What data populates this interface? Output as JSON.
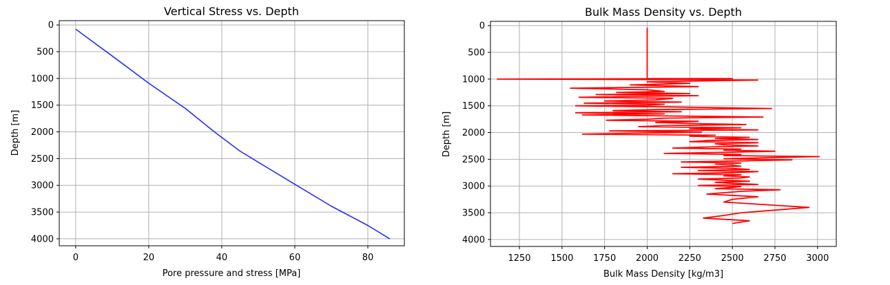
{
  "chart_data": [
    {
      "type": "line",
      "title": "Vertical Stress vs. Depth",
      "xlabel": "Pore pressure and stress [MPa]",
      "ylabel": "Depth [m]",
      "xlim": [
        -4.5,
        90
      ],
      "ylim": [
        4130,
        -80
      ],
      "y_inverted": true,
      "grid": true,
      "xticks": [
        0,
        20,
        40,
        60,
        80
      ],
      "yticks": [
        0,
        500,
        1000,
        1500,
        2000,
        2500,
        3000,
        3500,
        4000
      ],
      "color": "#2828ff",
      "series": [
        {
          "x": [
            0,
            10,
            20,
            30,
            38,
            45,
            52,
            60,
            70,
            80,
            86
          ],
          "y": [
            80,
            580,
            1090,
            1560,
            2000,
            2360,
            2650,
            2980,
            3390,
            3750,
            4000
          ]
        }
      ]
    },
    {
      "type": "line",
      "title": "Bulk Mass Density vs. Depth",
      "xlabel": "Bulk Mass Density [kg/m3]",
      "ylabel": "Depth [m]",
      "xlim": [
        1080,
        3110
      ],
      "ylim": [
        4130,
        -80
      ],
      "y_inverted": true,
      "grid": true,
      "xticks": [
        1250,
        1500,
        1750,
        2000,
        2250,
        2500,
        2750,
        3000
      ],
      "yticks": [
        0,
        500,
        1000,
        1500,
        2000,
        2500,
        3000,
        3500,
        4000
      ],
      "color": "#ff0000",
      "series": [
        {
          "x": [
            2000,
            2000,
            2000,
            2500,
            1120,
            2200,
            2650,
            2000,
            2250,
            1900,
            2300,
            1550,
            2000,
            2100,
            1820,
            2250,
            1700,
            2300,
            1600,
            2150,
            2050,
            1750,
            2200,
            1630,
            2100,
            2000,
            1580,
            2120,
            2730,
            2050,
            1800,
            2200,
            1580,
            2100,
            1620,
            2150,
            2680,
            2100,
            2000,
            1760,
            2300,
            2050,
            2250,
            2580,
            2100,
            1950,
            2550,
            2250,
            2650,
            1780,
            2320,
            2000,
            1620,
            2400,
            2250,
            2600,
            2400,
            2650,
            2350,
            2250,
            2650,
            2400,
            2450,
            2650,
            2350,
            2150,
            2550,
            2450,
            2750,
            2450,
            2100,
            2550,
            2450,
            3010,
            2700,
            2450,
            2850,
            2550,
            2200,
            2550,
            2400,
            2500,
            2550,
            2200,
            2500,
            2600,
            2300,
            2650,
            2500,
            2150,
            2550,
            2450,
            2600,
            2550,
            2300,
            2450,
            2600,
            2400,
            2500,
            2650,
            2300,
            2550,
            2480,
            2400,
            2780,
            2550,
            2350,
            2650,
            2500,
            2450,
            2950,
            2550,
            2450,
            2330,
            2600,
            2500
          ],
          "y": [
            40,
            500,
            990,
            990,
            1000,
            1010,
            1020,
            1050,
            1080,
            1110,
            1140,
            1170,
            1200,
            1230,
            1250,
            1270,
            1290,
            1310,
            1340,
            1360,
            1390,
            1410,
            1430,
            1450,
            1470,
            1490,
            1500,
            1520,
            1550,
            1570,
            1590,
            1610,
            1630,
            1650,
            1670,
            1690,
            1710,
            1730,
            1750,
            1770,
            1790,
            1810,
            1830,
            1850,
            1870,
            1890,
            1910,
            1930,
            1950,
            1970,
            1990,
            2010,
            2030,
            2050,
            2070,
            2090,
            2110,
            2130,
            2150,
            2170,
            2190,
            2210,
            2230,
            2250,
            2270,
            2290,
            2310,
            2330,
            2350,
            2370,
            2390,
            2410,
            2430,
            2450,
            2470,
            2490,
            2510,
            2530,
            2550,
            2570,
            2590,
            2610,
            2630,
            2650,
            2670,
            2690,
            2710,
            2730,
            2750,
            2770,
            2790,
            2810,
            2830,
            2850,
            2870,
            2890,
            2910,
            2930,
            2950,
            2970,
            2990,
            3010,
            3030,
            3050,
            3070,
            3100,
            3150,
            3200,
            3250,
            3300,
            3400,
            3500,
            3550,
            3600,
            3650,
            3700
          ]
        }
      ]
    }
  ]
}
